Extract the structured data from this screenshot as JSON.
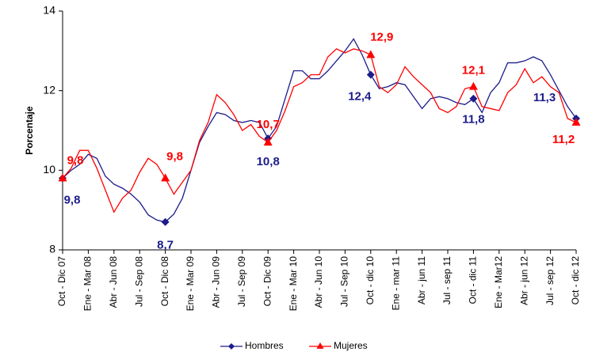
{
  "chart_data": {
    "type": "line",
    "y_label": "Porcentaje",
    "categories": [
      "Oct - Dic 07",
      null,
      null,
      "Ene - Mar 08",
      null,
      null,
      "Abr - Jun 08",
      null,
      null,
      "Jul - Sep 08",
      null,
      null,
      "Oct - Dic 08",
      null,
      null,
      "Ene - Mar 09",
      null,
      null,
      "Abr - Jun 09",
      null,
      null,
      "Jul - Sep 09",
      null,
      null,
      "Oct - Dic 09",
      null,
      null,
      "Ene - Mar 10",
      null,
      null,
      "Abr - Jun 10",
      null,
      null,
      "Jul - Sep 10",
      null,
      null,
      "Oct - dic 10",
      null,
      null,
      "Ene - mar 11",
      null,
      null,
      "Abr - jun 11",
      null,
      null,
      "Jul - sep 11",
      null,
      null,
      "Oct - dic 11",
      null,
      null,
      "Ene - Mar12",
      null,
      null,
      "Abr - jun 12",
      null,
      null,
      "Jul - sep 12",
      null,
      null,
      "Oct - dic 12"
    ],
    "series": [
      {
        "name": "Hombres",
        "color": "#1c1c8a",
        "marker": "diamond",
        "values": [
          9.8,
          10.0,
          10.15,
          10.4,
          10.3,
          9.85,
          9.65,
          9.55,
          9.4,
          9.2,
          8.88,
          8.75,
          8.7,
          8.9,
          9.3,
          10.0,
          10.7,
          11.1,
          11.45,
          11.4,
          11.25,
          11.2,
          11.25,
          11.2,
          10.8,
          11.1,
          11.8,
          12.5,
          12.5,
          12.3,
          12.3,
          12.5,
          12.75,
          13.0,
          13.3,
          12.9,
          12.4,
          12.05,
          12.1,
          12.2,
          12.15,
          11.85,
          11.55,
          11.8,
          11.85,
          11.8,
          11.7,
          11.65,
          11.8,
          11.45,
          11.95,
          12.2,
          12.7,
          12.7,
          12.75,
          12.85,
          12.75,
          12.4,
          12.0,
          11.6,
          11.3
        ],
        "value_labels": [
          "9,8",
          null,
          null,
          null,
          null,
          null,
          null,
          null,
          null,
          null,
          null,
          null,
          "8,7",
          null,
          null,
          null,
          null,
          null,
          null,
          null,
          null,
          null,
          null,
          null,
          "10,8",
          null,
          null,
          null,
          null,
          null,
          null,
          null,
          null,
          null,
          null,
          null,
          "12,4",
          null,
          null,
          null,
          null,
          null,
          null,
          null,
          null,
          null,
          null,
          null,
          "11,8",
          null,
          null,
          null,
          null,
          null,
          null,
          null,
          null,
          null,
          null,
          null,
          "11,3"
        ]
      },
      {
        "name": "Mujeres",
        "color": "#ff0000",
        "marker": "triangle",
        "values": [
          9.8,
          10.05,
          10.5,
          10.5,
          10.05,
          9.5,
          8.95,
          9.3,
          9.5,
          9.95,
          10.3,
          10.15,
          9.8,
          9.4,
          9.7,
          10.0,
          10.75,
          11.2,
          11.9,
          11.7,
          11.4,
          11.0,
          11.15,
          10.85,
          10.7,
          11.0,
          11.5,
          12.1,
          12.2,
          12.4,
          12.4,
          12.85,
          13.05,
          12.95,
          13.05,
          13.0,
          12.9,
          12.1,
          11.95,
          12.15,
          12.6,
          12.35,
          12.15,
          11.95,
          11.55,
          11.45,
          11.6,
          12.05,
          12.1,
          11.6,
          11.55,
          11.5,
          11.95,
          12.15,
          12.55,
          12.2,
          12.35,
          12.1,
          11.95,
          11.3,
          11.2
        ],
        "value_labels": [
          "9,8",
          null,
          null,
          null,
          null,
          null,
          null,
          null,
          null,
          null,
          null,
          null,
          "9,8",
          null,
          null,
          null,
          null,
          null,
          null,
          null,
          null,
          null,
          null,
          null,
          "10,7",
          null,
          null,
          null,
          null,
          null,
          null,
          null,
          null,
          null,
          null,
          null,
          "12,9",
          null,
          null,
          null,
          null,
          null,
          null,
          null,
          null,
          null,
          null,
          null,
          "12,1",
          null,
          null,
          null,
          null,
          null,
          null,
          null,
          null,
          null,
          null,
          null,
          "11,2"
        ]
      }
    ],
    "ylim": [
      8,
      14
    ],
    "yticks": [
      8,
      10,
      12,
      14
    ],
    "grid": false,
    "legend": "bottom"
  }
}
